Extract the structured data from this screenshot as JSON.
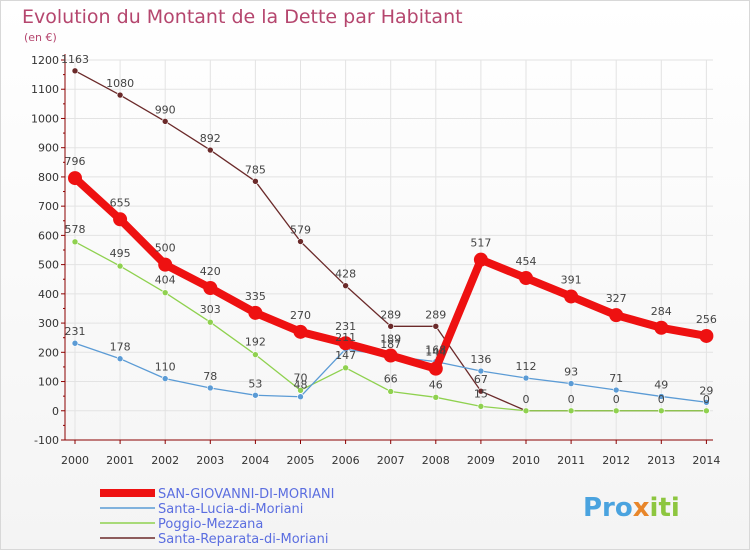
{
  "chart_data": {
    "type": "line",
    "title": "Evolution du Montant de la Dette par Habitant",
    "subtitle": "(en €)",
    "xlabel": "",
    "ylabel": "",
    "ylim": [
      -100,
      1200
    ],
    "yticks": [
      -100,
      0,
      100,
      200,
      300,
      400,
      500,
      600,
      700,
      800,
      900,
      1000,
      1100,
      1200
    ],
    "categories": [
      "2000",
      "2001",
      "2002",
      "2003",
      "2004",
      "2005",
      "2006",
      "2007",
      "2008",
      "2009",
      "2010",
      "2011",
      "2012",
      "2013",
      "2014"
    ],
    "series": [
      {
        "name": "SAN-GIOVANNI-DI-MORIANI",
        "color": "#ee1111",
        "values": [
          796,
          655,
          500,
          420,
          335,
          270,
          231,
          189,
          144,
          517,
          454,
          391,
          327,
          284,
          256
        ]
      },
      {
        "name": "Santa-Lucia-di-Moriani",
        "color": "#5b9bd5",
        "values": [
          231,
          178,
          110,
          78,
          53,
          48,
          211,
          187,
          168,
          136,
          112,
          93,
          71,
          49,
          29
        ]
      },
      {
        "name": "Poggio-Mezzana",
        "color": "#8fd14f",
        "values": [
          578,
          495,
          404,
          303,
          192,
          70,
          147,
          66,
          46,
          15,
          0,
          0,
          0,
          0,
          0
        ]
      },
      {
        "name": "Santa-Reparata-di-Moriani",
        "color": "#6b2a2a",
        "values": [
          1163,
          1080,
          990,
          892,
          785,
          579,
          428,
          289,
          289,
          67,
          0,
          0,
          0,
          0,
          0
        ]
      }
    ],
    "labels": [
      {
        "series": 0,
        "values": [
          "796",
          "655",
          "500",
          "420",
          "335",
          "270",
          "231",
          "189",
          "144",
          "517",
          "454",
          "391",
          "327",
          "284",
          "256"
        ]
      },
      {
        "series": 1,
        "values": [
          "231",
          "178",
          "110",
          "78",
          "53",
          "48",
          "211",
          "187",
          "168",
          "136",
          "112",
          "93",
          "71",
          "49",
          "29"
        ]
      },
      {
        "series": 2,
        "values": [
          "578",
          "495",
          "404",
          "303",
          "192",
          "70",
          "147",
          "66",
          "46",
          "15",
          "",
          "",
          "",
          "",
          ""
        ]
      },
      {
        "series": 3,
        "values": [
          "1163",
          "1080",
          "990",
          "892",
          "785",
          "579",
          "428",
          "289",
          "289",
          "67",
          "0",
          "0",
          "0",
          "0",
          "0"
        ]
      }
    ]
  },
  "logo": {
    "part1": "Pro",
    "part2": "x",
    "part3": "iti"
  },
  "colors": {
    "axis": "#8b0000",
    "grid": "#e3e3e3",
    "title": "#b5466e"
  }
}
